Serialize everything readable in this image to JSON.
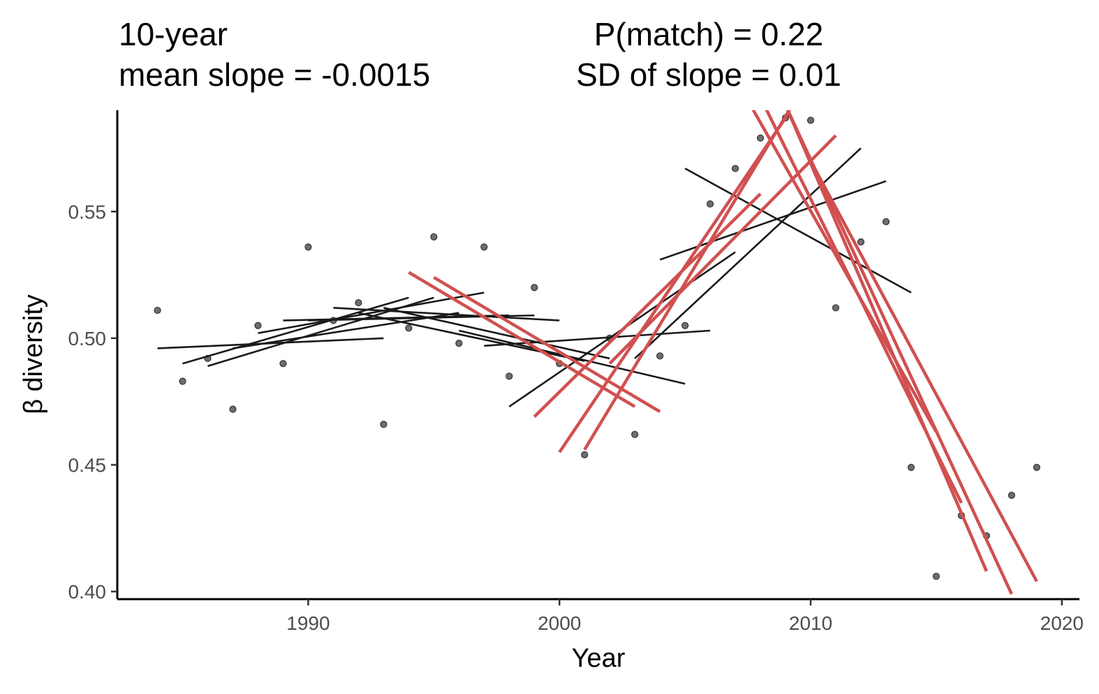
{
  "chart_data": {
    "type": "scatter",
    "title_left": [
      "10-year",
      "mean slope = -0.0015"
    ],
    "title_right": [
      "P(match) = 0.22",
      "SD of slope = 0.01"
    ],
    "xlabel": "Year",
    "ylabel": "β diversity",
    "xlim": [
      1982.4,
      2020.7
    ],
    "ylim": [
      0.397,
      0.59
    ],
    "x_ticks": [
      1990,
      2000,
      2010,
      2020
    ],
    "y_ticks": [
      0.4,
      0.45,
      0.5,
      0.55
    ],
    "y_tick_labels": [
      "0.40",
      "0.45",
      "0.50",
      "0.55"
    ],
    "grid": false,
    "colors": {
      "points": "#555555",
      "normal_lines": "#1a1a1a",
      "matched_lines": "#d05050"
    },
    "points": {
      "x": [
        1984,
        1985,
        1986,
        1987,
        1988,
        1989,
        1990,
        1991,
        1992,
        1993,
        1994,
        1995,
        1996,
        1997,
        1998,
        1999,
        2000,
        2001,
        2002,
        2003,
        2004,
        2005,
        2006,
        2007,
        2008,
        2009,
        2010,
        2011,
        2012,
        2013,
        2014,
        2015,
        2016,
        2017,
        2018,
        2019
      ],
      "y": [
        0.511,
        0.483,
        0.492,
        0.472,
        0.505,
        0.49,
        0.536,
        0.507,
        0.514,
        0.466,
        0.504,
        0.54,
        0.498,
        0.536,
        0.485,
        0.52,
        0.49,
        0.454,
        0.5,
        0.462,
        0.493,
        0.505,
        0.553,
        0.567,
        0.579,
        0.587,
        0.586,
        0.512,
        0.538,
        0.546,
        0.449,
        0.406,
        0.43,
        0.422,
        0.438,
        0.449
      ]
    },
    "trend_lines": [
      {
        "x": [
          1984,
          1993
        ],
        "y": [
          0.496,
          0.5
        ],
        "highlight": false
      },
      {
        "x": [
          1985,
          1994
        ],
        "y": [
          0.49,
          0.516
        ],
        "highlight": false
      },
      {
        "x": [
          1986,
          1995
        ],
        "y": [
          0.489,
          0.516
        ],
        "highlight": false
      },
      {
        "x": [
          1987,
          1996
        ],
        "y": [
          0.496,
          0.51
        ],
        "highlight": false
      },
      {
        "x": [
          1988,
          1997
        ],
        "y": [
          0.502,
          0.518
        ],
        "highlight": false
      },
      {
        "x": [
          1989,
          1998
        ],
        "y": [
          0.507,
          0.509
        ],
        "highlight": false
      },
      {
        "x": [
          1990,
          1999
        ],
        "y": [
          0.507,
          0.509
        ],
        "highlight": false
      },
      {
        "x": [
          1991,
          2000
        ],
        "y": [
          0.512,
          0.507
        ],
        "highlight": false
      },
      {
        "x": [
          1992,
          2001
        ],
        "y": [
          0.51,
          0.491
        ],
        "highlight": false
      },
      {
        "x": [
          1993,
          2002
        ],
        "y": [
          0.512,
          0.492
        ],
        "highlight": false
      },
      {
        "x": [
          1994,
          2003
        ],
        "y": [
          0.526,
          0.473
        ],
        "highlight": true
      },
      {
        "x": [
          1995,
          2004
        ],
        "y": [
          0.524,
          0.471
        ],
        "highlight": true
      },
      {
        "x": [
          1996,
          2005
        ],
        "y": [
          0.503,
          0.482
        ],
        "highlight": false
      },
      {
        "x": [
          1997,
          2006
        ],
        "y": [
          0.497,
          0.503
        ],
        "highlight": false
      },
      {
        "x": [
          1998,
          2007
        ],
        "y": [
          0.473,
          0.534
        ],
        "highlight": false
      },
      {
        "x": [
          1999,
          2008
        ],
        "y": [
          0.469,
          0.557
        ],
        "highlight": true
      },
      {
        "x": [
          2000,
          2009
        ],
        "y": [
          0.455,
          0.587
        ],
        "highlight": true
      },
      {
        "x": [
          2001,
          2010
        ],
        "y": [
          0.456,
          0.604
        ],
        "highlight": true
      },
      {
        "x": [
          2002,
          2011
        ],
        "y": [
          0.49,
          0.58
        ],
        "highlight": true
      },
      {
        "x": [
          2003,
          2012
        ],
        "y": [
          0.492,
          0.575
        ],
        "highlight": false
      },
      {
        "x": [
          2004,
          2013
        ],
        "y": [
          0.531,
          0.562
        ],
        "highlight": false
      },
      {
        "x": [
          2005,
          2014
        ],
        "y": [
          0.567,
          0.518
        ],
        "highlight": false
      },
      {
        "x": [
          2006,
          2015
        ],
        "y": [
          0.62,
          0.463
        ],
        "highlight": true
      },
      {
        "x": [
          2007,
          2016
        ],
        "y": [
          0.615,
          0.435
        ],
        "highlight": true
      },
      {
        "x": [
          2008,
          2017
        ],
        "y": [
          0.615,
          0.408
        ],
        "highlight": true
      },
      {
        "x": [
          2009,
          2018
        ],
        "y": [
          0.592,
          0.399
        ],
        "highlight": true
      },
      {
        "x": [
          2010,
          2019
        ],
        "y": [
          0.57,
          0.404
        ],
        "highlight": true
      }
    ]
  }
}
